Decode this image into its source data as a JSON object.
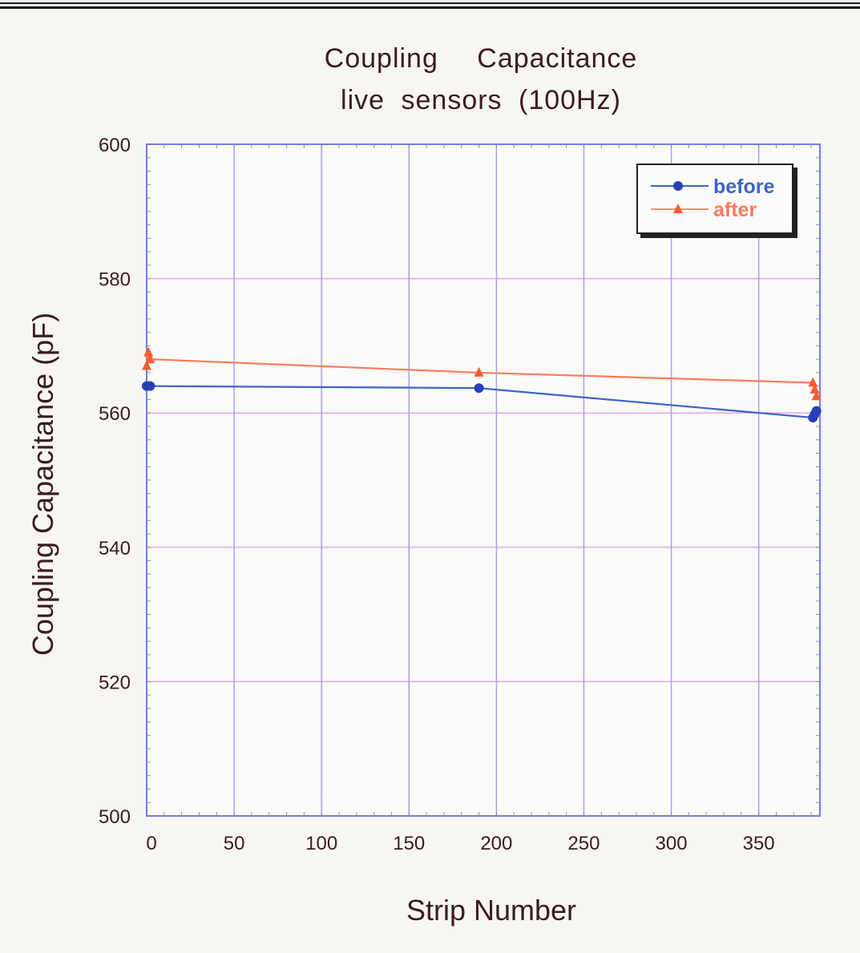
{
  "chart_data": {
    "type": "line",
    "title": "Coupling    Capacitance",
    "subtitle": "live  sensors  (100Hz)",
    "xlabel": "Strip Number",
    "ylabel": "Coupling Capacitance (pF)",
    "xlim": [
      0,
      385
    ],
    "ylim": [
      500,
      600
    ],
    "xticks": [
      "0",
      "50",
      "100",
      "150",
      "200",
      "250",
      "300",
      "350"
    ],
    "yticks": [
      "500",
      "520",
      "540",
      "560",
      "580",
      "600"
    ],
    "grid": true,
    "legend_position": "top-right",
    "series": [
      {
        "name": "before",
        "color": "#3d64c8",
        "marker": "circle",
        "points": [
          [
            0,
            564
          ],
          [
            2,
            564
          ],
          [
            190,
            563.7
          ],
          [
            381,
            559.3
          ],
          [
            382,
            559.8
          ],
          [
            383,
            560.3
          ]
        ]
      },
      {
        "name": "after",
        "color": "#ff7a5c",
        "marker": "triangle",
        "points": [
          [
            0,
            567
          ],
          [
            1,
            569
          ],
          [
            2,
            568
          ],
          [
            190,
            566
          ],
          [
            381,
            564.5
          ],
          [
            382,
            563.5
          ],
          [
            383,
            562.5
          ]
        ]
      }
    ]
  }
}
